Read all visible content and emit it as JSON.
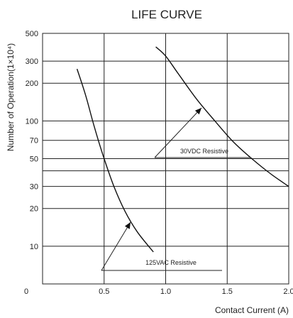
{
  "chart_data": {
    "type": "line",
    "title": "LIFE CURVE",
    "xlabel": "Contact Current (A)",
    "ylabel": "Number of Operation(1×10⁴)",
    "xlim": [
      0,
      2.0
    ],
    "ylim": [
      5,
      500
    ],
    "y_scale": "log",
    "grid": true,
    "x_ticks": [
      {
        "value": 0.5,
        "label": "0.5"
      },
      {
        "value": 1.0,
        "label": "1.0"
      },
      {
        "value": 1.5,
        "label": "1.5"
      },
      {
        "value": 2.0,
        "label": "2.0"
      }
    ],
    "origin_label": "0",
    "y_ticks": [
      {
        "value": 10,
        "label": "10"
      },
      {
        "value": 20,
        "label": "20"
      },
      {
        "value": 30,
        "label": "30"
      },
      {
        "value": 50,
        "label": "50"
      },
      {
        "value": 70,
        "label": "70"
      },
      {
        "value": 100,
        "label": "100"
      },
      {
        "value": 200,
        "label": "200"
      },
      {
        "value": 300,
        "label": "300"
      },
      {
        "value": 500,
        "label": "500"
      }
    ],
    "series": [
      {
        "name": "125VAC Resistive",
        "x": [
          0.28,
          0.35,
          0.42,
          0.5,
          0.58,
          0.67,
          0.77,
          0.9
        ],
        "y": [
          260,
          160,
          90,
          50,
          30,
          19,
          13,
          9
        ]
      },
      {
        "name": "30VDC Resistive",
        "x": [
          0.92,
          1.0,
          1.1,
          1.25,
          1.4,
          1.55,
          1.7,
          1.85,
          2.0
        ],
        "y": [
          390,
          330,
          240,
          150,
          100,
          68,
          50,
          38,
          30
        ]
      }
    ],
    "annotations": [
      {
        "text": "125VAC Resistive",
        "series": "125VAC Resistive"
      },
      {
        "text": "30VDC Resistive",
        "series": "30VDC Resistive"
      }
    ]
  }
}
